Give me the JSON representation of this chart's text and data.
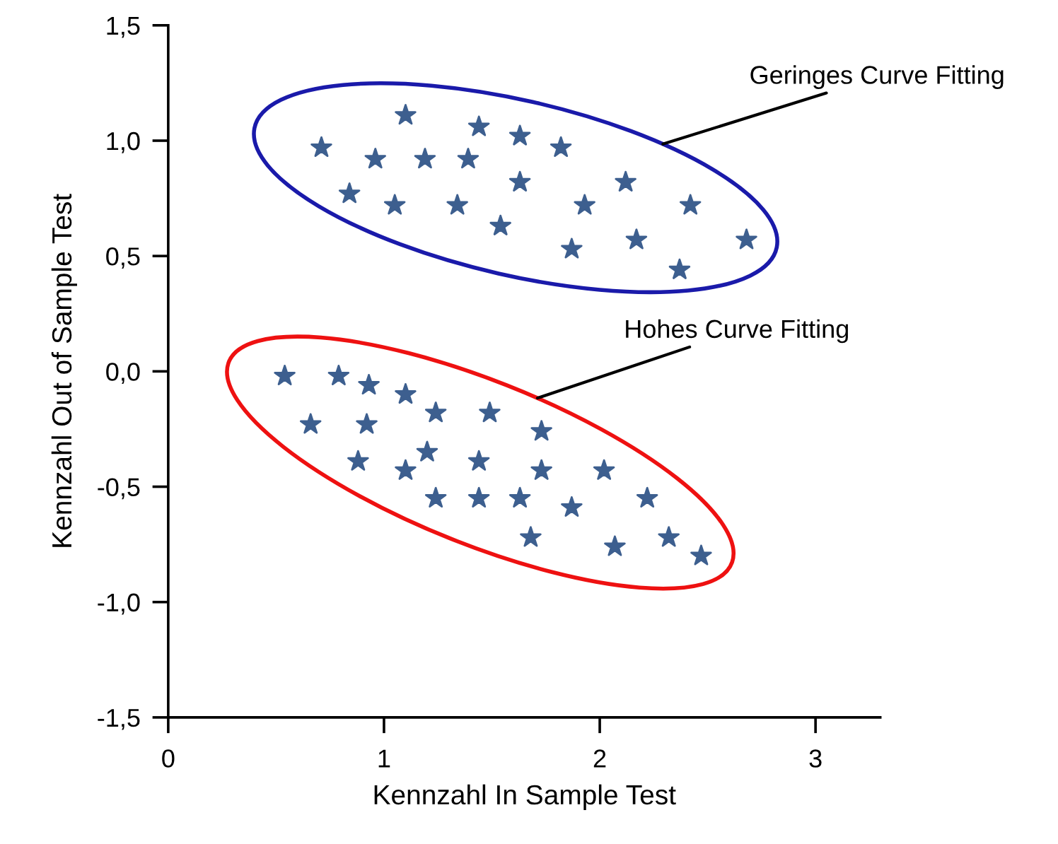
{
  "chart_data": {
    "type": "scatter",
    "xlabel": "Kennzahl In Sample Test",
    "ylabel": "Kennzahl Out of Sample Test",
    "xlim": [
      0,
      3.3
    ],
    "ylim": [
      -1.5,
      1.5
    ],
    "xticks": [
      0,
      1,
      2,
      3
    ],
    "yticks": [
      {
        "value": -1.5,
        "label": "-1,5"
      },
      {
        "value": -1.0,
        "label": "-1,0"
      },
      {
        "value": -0.5,
        "label": "-0,5"
      },
      {
        "value": 0.0,
        "label": "0,0"
      },
      {
        "value": 0.5,
        "label": "0,5"
      },
      {
        "value": 1.0,
        "label": "1,0"
      },
      {
        "value": 1.5,
        "label": "1,5"
      }
    ],
    "grid": false,
    "legend": false,
    "marker": "star",
    "annotations": [
      "Geringes Curve Fitting",
      "Hohes Curve Fitting"
    ],
    "series": [
      {
        "color": "#3d5f8f",
        "x": [
          1.1,
          0.71,
          1.44,
          1.63,
          1.82,
          0.96,
          1.19,
          1.39,
          0.84,
          1.05,
          1.34,
          1.63,
          2.12,
          1.93,
          2.42,
          1.54,
          1.87,
          2.17,
          2.68,
          2.37
        ],
        "values": [
          1.11,
          0.97,
          1.06,
          1.02,
          0.97,
          0.92,
          0.92,
          0.92,
          0.77,
          0.72,
          0.72,
          0.82,
          0.82,
          0.72,
          0.72,
          0.63,
          0.53,
          0.57,
          0.57,
          0.44
        ]
      },
      {
        "color": "#3d5f8f",
        "x": [
          0.54,
          0.79,
          0.93,
          1.1,
          1.24,
          1.49,
          0.66,
          0.92,
          1.73,
          1.2,
          0.88,
          1.1,
          1.44,
          1.73,
          2.02,
          1.24,
          1.44,
          1.63,
          1.87,
          2.22,
          1.68,
          2.07,
          2.32,
          2.47
        ],
        "values": [
          -0.02,
          -0.02,
          -0.06,
          -0.1,
          -0.18,
          -0.18,
          -0.23,
          -0.23,
          -0.26,
          -0.35,
          -0.39,
          -0.43,
          -0.39,
          -0.43,
          -0.43,
          -0.55,
          -0.55,
          -0.55,
          -0.59,
          -0.55,
          -0.72,
          -0.76,
          -0.72,
          -0.8
        ]
      }
    ]
  }
}
